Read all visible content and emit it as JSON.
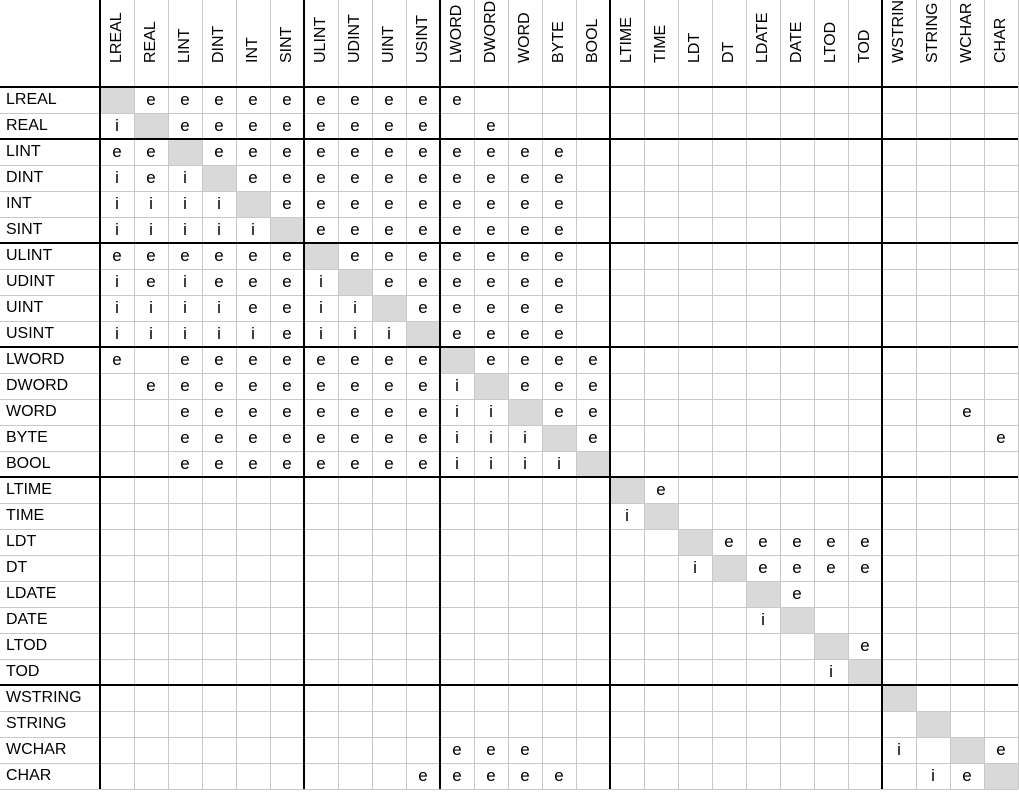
{
  "columns": [
    "LREAL",
    "REAL",
    "LINT",
    "DINT",
    "INT",
    "SINT",
    "ULINT",
    "UDINT",
    "UINT",
    "USINT",
    "LWORD",
    "DWORD",
    "WORD",
    "BYTE",
    "BOOL",
    "LTIME",
    "TIME",
    "LDT",
    "DT",
    "LDATE",
    "DATE",
    "LTOD",
    "TOD",
    "WSTRING",
    "STRING",
    "WCHAR",
    "CHAR"
  ],
  "rows": [
    {
      "label": "LREAL",
      "cells": [
        "",
        "e",
        "e",
        "e",
        "e",
        "e",
        "e",
        "e",
        "e",
        "e",
        "e",
        "",
        "",
        "",
        "",
        "",
        "",
        "",
        "",
        "",
        "",
        "",
        "",
        "",
        "",
        "",
        ""
      ]
    },
    {
      "label": "REAL",
      "cells": [
        "i",
        "",
        "e",
        "e",
        "e",
        "e",
        "e",
        "e",
        "e",
        "e",
        "",
        "e",
        "",
        "",
        "",
        "",
        "",
        "",
        "",
        "",
        "",
        "",
        "",
        "",
        "",
        "",
        ""
      ]
    },
    {
      "label": "LINT",
      "cells": [
        "e",
        "e",
        "",
        "e",
        "e",
        "e",
        "e",
        "e",
        "e",
        "e",
        "e",
        "e",
        "e",
        "e",
        "",
        "",
        "",
        "",
        "",
        "",
        "",
        "",
        "",
        "",
        "",
        "",
        ""
      ]
    },
    {
      "label": "DINT",
      "cells": [
        "i",
        "e",
        "i",
        "",
        "e",
        "e",
        "e",
        "e",
        "e",
        "e",
        "e",
        "e",
        "e",
        "e",
        "",
        "",
        "",
        "",
        "",
        "",
        "",
        "",
        "",
        "",
        "",
        "",
        ""
      ]
    },
    {
      "label": "INT",
      "cells": [
        "i",
        "i",
        "i",
        "i",
        "",
        "e",
        "e",
        "e",
        "e",
        "e",
        "e",
        "e",
        "e",
        "e",
        "",
        "",
        "",
        "",
        "",
        "",
        "",
        "",
        "",
        "",
        "",
        "",
        ""
      ]
    },
    {
      "label": "SINT",
      "cells": [
        "i",
        "i",
        "i",
        "i",
        "i",
        "",
        "e",
        "e",
        "e",
        "e",
        "e",
        "e",
        "e",
        "e",
        "",
        "",
        "",
        "",
        "",
        "",
        "",
        "",
        "",
        "",
        "",
        "",
        ""
      ]
    },
    {
      "label": "ULINT",
      "cells": [
        "e",
        "e",
        "e",
        "e",
        "e",
        "e",
        "",
        "e",
        "e",
        "e",
        "e",
        "e",
        "e",
        "e",
        "",
        "",
        "",
        "",
        "",
        "",
        "",
        "",
        "",
        "",
        "",
        "",
        ""
      ]
    },
    {
      "label": "UDINT",
      "cells": [
        "i",
        "e",
        "i",
        "e",
        "e",
        "e",
        "i",
        "",
        "e",
        "e",
        "e",
        "e",
        "e",
        "e",
        "",
        "",
        "",
        "",
        "",
        "",
        "",
        "",
        "",
        "",
        "",
        "",
        ""
      ]
    },
    {
      "label": "UINT",
      "cells": [
        "i",
        "i",
        "i",
        "i",
        "e",
        "e",
        "i",
        "i",
        "",
        "e",
        "e",
        "e",
        "e",
        "e",
        "",
        "",
        "",
        "",
        "",
        "",
        "",
        "",
        "",
        "",
        "",
        "",
        ""
      ]
    },
    {
      "label": "USINT",
      "cells": [
        "i",
        "i",
        "i",
        "i",
        "i",
        "e",
        "i",
        "i",
        "i",
        "",
        "e",
        "e",
        "e",
        "e",
        "",
        "",
        "",
        "",
        "",
        "",
        "",
        "",
        "",
        "",
        "",
        "",
        ""
      ]
    },
    {
      "label": "LWORD",
      "cells": [
        "e",
        "",
        "e",
        "e",
        "e",
        "e",
        "e",
        "e",
        "e",
        "e",
        "",
        "e",
        "e",
        "e",
        "e",
        "",
        "",
        "",
        "",
        "",
        "",
        "",
        "",
        "",
        "",
        "",
        ""
      ]
    },
    {
      "label": "DWORD",
      "cells": [
        "",
        "e",
        "e",
        "e",
        "e",
        "e",
        "e",
        "e",
        "e",
        "e",
        "i",
        "",
        "e",
        "e",
        "e",
        "",
        "",
        "",
        "",
        "",
        "",
        "",
        "",
        "",
        "",
        "",
        ""
      ]
    },
    {
      "label": "WORD",
      "cells": [
        "",
        "",
        "e",
        "e",
        "e",
        "e",
        "e",
        "e",
        "e",
        "e",
        "i",
        "i",
        "",
        "e",
        "e",
        "",
        "",
        "",
        "",
        "",
        "",
        "",
        "",
        "",
        "",
        "e",
        ""
      ]
    },
    {
      "label": "BYTE",
      "cells": [
        "",
        "",
        "e",
        "e",
        "e",
        "e",
        "e",
        "e",
        "e",
        "e",
        "i",
        "i",
        "i",
        "",
        "e",
        "",
        "",
        "",
        "",
        "",
        "",
        "",
        "",
        "",
        "",
        "",
        "e"
      ]
    },
    {
      "label": "BOOL",
      "cells": [
        "",
        "",
        "e",
        "e",
        "e",
        "e",
        "e",
        "e",
        "e",
        "e",
        "i",
        "i",
        "i",
        "i",
        "",
        "",
        "",
        "",
        "",
        "",
        "",
        "",
        "",
        "",
        "",
        "",
        ""
      ]
    },
    {
      "label": "LTIME",
      "cells": [
        "",
        "",
        "",
        "",
        "",
        "",
        "",
        "",
        "",
        "",
        "",
        "",
        "",
        "",
        "",
        "",
        "e",
        "",
        "",
        "",
        "",
        "",
        "",
        "",
        "",
        "",
        ""
      ]
    },
    {
      "label": "TIME",
      "cells": [
        "",
        "",
        "",
        "",
        "",
        "",
        "",
        "",
        "",
        "",
        "",
        "",
        "",
        "",
        "",
        "i",
        "",
        "",
        "",
        "",
        "",
        "",
        "",
        "",
        "",
        "",
        ""
      ]
    },
    {
      "label": "LDT",
      "cells": [
        "",
        "",
        "",
        "",
        "",
        "",
        "",
        "",
        "",
        "",
        "",
        "",
        "",
        "",
        "",
        "",
        "",
        "",
        "e",
        "e",
        "e",
        "e",
        "e",
        "",
        "",
        "",
        ""
      ]
    },
    {
      "label": "DT",
      "cells": [
        "",
        "",
        "",
        "",
        "",
        "",
        "",
        "",
        "",
        "",
        "",
        "",
        "",
        "",
        "",
        "",
        "",
        "i",
        "",
        "e",
        "e",
        "e",
        "e",
        "",
        "",
        "",
        ""
      ]
    },
    {
      "label": "LDATE",
      "cells": [
        "",
        "",
        "",
        "",
        "",
        "",
        "",
        "",
        "",
        "",
        "",
        "",
        "",
        "",
        "",
        "",
        "",
        "",
        "",
        "",
        "e",
        "",
        "",
        "",
        "",
        "",
        ""
      ]
    },
    {
      "label": "DATE",
      "cells": [
        "",
        "",
        "",
        "",
        "",
        "",
        "",
        "",
        "",
        "",
        "",
        "",
        "",
        "",
        "",
        "",
        "",
        "",
        "",
        "i",
        "",
        "",
        "",
        "",
        "",
        "",
        ""
      ]
    },
    {
      "label": "LTOD",
      "cells": [
        "",
        "",
        "",
        "",
        "",
        "",
        "",
        "",
        "",
        "",
        "",
        "",
        "",
        "",
        "",
        "",
        "",
        "",
        "",
        "",
        "",
        "",
        "e",
        "",
        "",
        "",
        ""
      ]
    },
    {
      "label": "TOD",
      "cells": [
        "",
        "",
        "",
        "",
        "",
        "",
        "",
        "",
        "",
        "",
        "",
        "",
        "",
        "",
        "",
        "",
        "",
        "",
        "",
        "",
        "",
        "i",
        "",
        "",
        "",
        "",
        ""
      ]
    },
    {
      "label": "WSTRING",
      "cells": [
        "",
        "",
        "",
        "",
        "",
        "",
        "",
        "",
        "",
        "",
        "",
        "",
        "",
        "",
        "",
        "",
        "",
        "",
        "",
        "",
        "",
        "",
        "",
        "",
        "",
        "",
        ""
      ]
    },
    {
      "label": "STRING",
      "cells": [
        "",
        "",
        "",
        "",
        "",
        "",
        "",
        "",
        "",
        "",
        "",
        "",
        "",
        "",
        "",
        "",
        "",
        "",
        "",
        "",
        "",
        "",
        "",
        "",
        "",
        "",
        ""
      ]
    },
    {
      "label": "WCHAR",
      "cells": [
        "",
        "",
        "",
        "",
        "",
        "",
        "",
        "",
        "",
        "",
        "e",
        "e",
        "e",
        "",
        "",
        "",
        "",
        "",
        "",
        "",
        "",
        "",
        "",
        "i",
        "",
        "",
        "e"
      ]
    },
    {
      "label": "CHAR",
      "cells": [
        "",
        "",
        "",
        "",
        "",
        "",
        "",
        "",
        "",
        "e",
        "e",
        "e",
        "e",
        "e",
        "",
        "",
        "",
        "",
        "",
        "",
        "",
        "",
        "",
        "",
        "i",
        "e",
        ""
      ]
    }
  ]
}
